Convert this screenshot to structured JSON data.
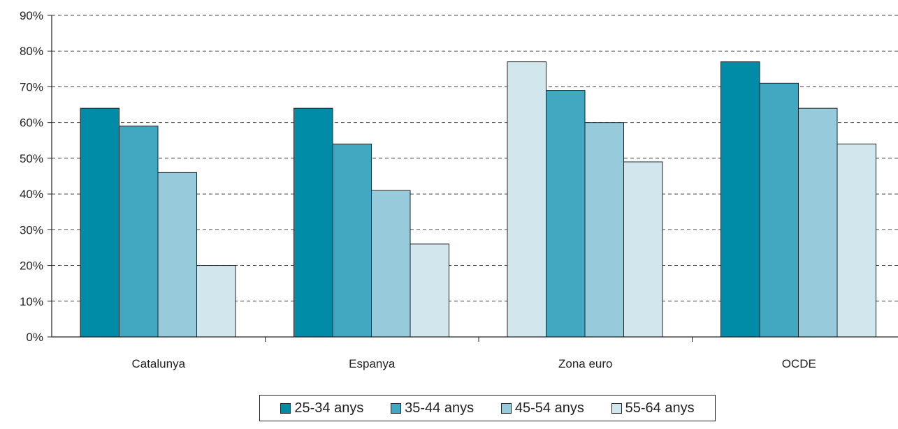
{
  "chart_data": {
    "type": "bar",
    "categories": [
      "Catalunya",
      "Espanya",
      "Zona euro",
      "OCDE"
    ],
    "series": [
      {
        "name": "25-34 anys",
        "color": "#008ba6",
        "values": [
          64,
          64,
          null,
          77
        ]
      },
      {
        "name": "35-44 anys",
        "color": "#42a8c1",
        "values": [
          59,
          54,
          69,
          71
        ]
      },
      {
        "name": "45-54 anys",
        "color": "#97cbdb",
        "values": [
          46,
          41,
          60,
          64
        ]
      },
      {
        "name": "55-64 anys",
        "color": "#d2e6ed",
        "values": [
          20,
          26,
          49,
          54
        ]
      }
    ],
    "extra_bars": [
      {
        "category": "Zona euro",
        "value": 77,
        "color": "#d2e6ed",
        "slot": 0
      }
    ],
    "yticks": [
      "0%",
      "10%",
      "20%",
      "30%",
      "40%",
      "50%",
      "60%",
      "70%",
      "80%",
      "90%"
    ],
    "ylim": [
      0,
      90
    ],
    "grid": "horizontal-dashed",
    "legend_position": "bottom"
  }
}
